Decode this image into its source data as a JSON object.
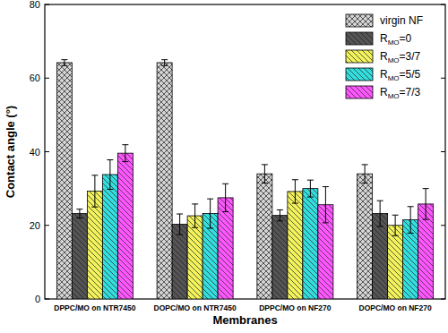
{
  "chart_data": {
    "type": "bar",
    "x_label": "Membranes",
    "y_label": "Contact angle (°)",
    "categories": [
      "DPPC/MO on NTR7450",
      "DOPC/MO on NTR7450",
      "DPPC/MO on NF270",
      "DOPC/MO on NF270"
    ],
    "series": [
      {
        "name": "virgin NF",
        "color": "#d4d4d4",
        "values": [
          64.2,
          64.2,
          34,
          34
        ],
        "errors": [
          0.8,
          0.8,
          2.5,
          2.5
        ]
      },
      {
        "name": "RMO=0",
        "color": "#555555",
        "values": [
          23.2,
          20.3,
          22.7,
          23.2
        ],
        "errors": [
          1.2,
          2.8,
          1.5,
          3.5
        ]
      },
      {
        "name": "RMO=3/7",
        "color": "#f2f25a",
        "values": [
          29.3,
          22.6,
          29.2,
          20
        ],
        "errors": [
          4.3,
          3.2,
          3.2,
          2.8
        ]
      },
      {
        "name": "RMO=5/5",
        "color": "#33dede",
        "values": [
          33.8,
          23.2,
          30,
          21.5
        ],
        "errors": [
          4,
          4,
          2.3,
          3.6
        ]
      },
      {
        "name": "RMO=7/3",
        "color": "#ff55ff",
        "values": [
          39.6,
          27.5,
          25.6,
          25.8
        ],
        "errors": [
          2.3,
          3.8,
          4.9,
          4.2
        ]
      }
    ],
    "ylim": [
      0,
      80
    ],
    "yticks": [
      0,
      20,
      40,
      60,
      80
    ],
    "legend": "upper right",
    "grid": false
  }
}
